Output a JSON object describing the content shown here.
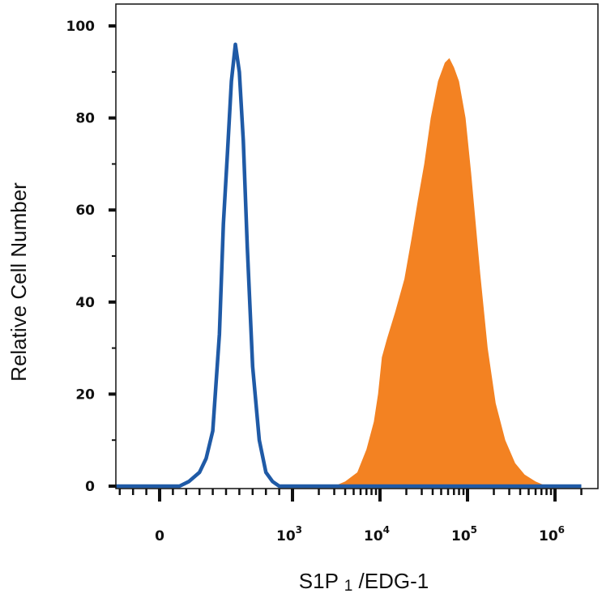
{
  "chart_data": {
    "type": "area",
    "xlabel": "S1P",
    "xlabel_subscript": "1",
    "xlabel_suffix": "/EDG-1",
    "ylabel": "Relative Cell Number",
    "x_scale": "biexponential",
    "xlim": [
      -600,
      2000000
    ],
    "ylim": [
      0,
      100
    ],
    "y_ticks": [
      0,
      20,
      40,
      60,
      80,
      100
    ],
    "x_ticks": [
      {
        "value": 0,
        "base": "0",
        "exp": ""
      },
      {
        "value": 1000,
        "base": "10",
        "exp": "3"
      },
      {
        "value": 10000,
        "base": "10",
        "exp": "4"
      },
      {
        "value": 100000,
        "base": "10",
        "exp": "5"
      },
      {
        "value": 1000000,
        "base": "10",
        "exp": "6"
      }
    ],
    "grid": false,
    "series": [
      {
        "style": "outline",
        "color": "#1f5aa6",
        "x": [
          -600,
          150,
          220,
          300,
          350,
          400,
          450,
          480,
          510,
          540,
          570,
          600,
          630,
          660,
          700,
          750,
          800,
          850,
          900,
          1000,
          2000000
        ],
        "y": [
          0,
          0,
          1,
          3,
          6,
          12,
          33,
          57,
          72,
          88,
          96,
          90,
          75,
          52,
          26,
          10,
          3,
          1,
          0,
          0,
          0
        ]
      },
      {
        "style": "filled",
        "color": "#f38222",
        "x": [
          -600,
          3000,
          4000,
          5500,
          7000,
          8500,
          9500,
          10500,
          12000,
          15000,
          19000,
          23000,
          27000,
          32000,
          38000,
          46000,
          55000,
          62000,
          70000,
          80000,
          95000,
          110000,
          140000,
          170000,
          210000,
          270000,
          350000,
          450000,
          600000,
          800000,
          2000000
        ],
        "y": [
          0,
          0,
          1,
          3,
          8,
          14,
          20,
          28,
          32,
          38,
          45,
          54,
          62,
          70,
          80,
          88,
          92,
          93,
          91,
          88,
          80,
          68,
          46,
          30,
          18,
          10,
          5,
          2.5,
          1,
          0,
          0
        ]
      }
    ]
  }
}
